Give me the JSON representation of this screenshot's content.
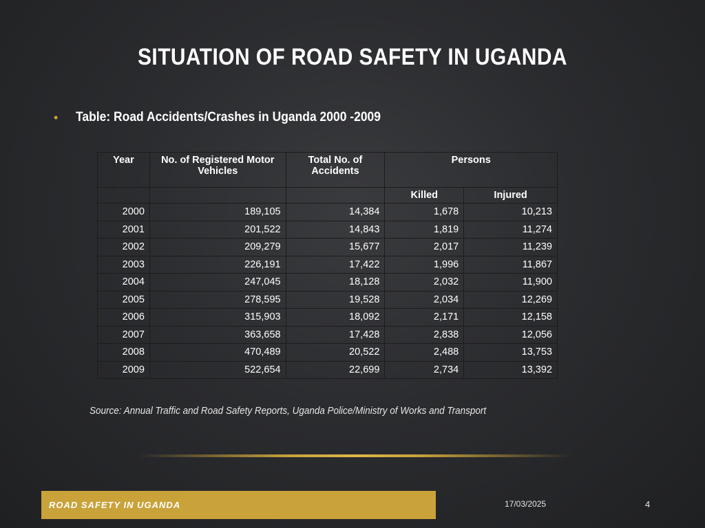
{
  "slide": {
    "title": "SITUATION OF ROAD SAFETY IN UGANDA",
    "bullet": "Table: Road Accidents/Crashes in Uganda 2000 -2009",
    "source": "Source: Annual Traffic and Road Safety Reports, Uganda Police/Ministry of Works and Transport",
    "footer_label": "ROAD SAFETY IN UGANDA",
    "date": "17/03/2025",
    "page_number": "4",
    "accent_color": "#c9a23a"
  },
  "table": {
    "headers": {
      "year": "Year",
      "vehicles": "No. of Registered Motor Vehicles",
      "accidents": "Total No. of Accidents",
      "persons": "Persons",
      "killed": "Killed",
      "injured": "Injured"
    },
    "rows": [
      [
        "2000",
        "189,105",
        "14,384",
        "1,678",
        "10,213"
      ],
      [
        "2001",
        "201,522",
        "14,843",
        "1,819",
        "11,274"
      ],
      [
        "2002",
        "209,279",
        "15,677",
        "2,017",
        "11,239"
      ],
      [
        "2003",
        "226,191",
        "17,422",
        "1,996",
        "11,867"
      ],
      [
        "2004",
        "247,045",
        "18,128",
        "2,032",
        "11,900"
      ],
      [
        "2005",
        "278,595",
        "19,528",
        "2,034",
        "12,269"
      ],
      [
        "2006",
        "315,903",
        "18,092",
        "2,171",
        "12,158"
      ],
      [
        "2007",
        "363,658",
        "17,428",
        "2,838",
        "12,056"
      ],
      [
        "2008",
        "470,489",
        "20,522",
        "2,488",
        "13,753"
      ],
      [
        "2009",
        "522,654",
        "22,699",
        "2,734",
        "13,392"
      ]
    ]
  }
}
